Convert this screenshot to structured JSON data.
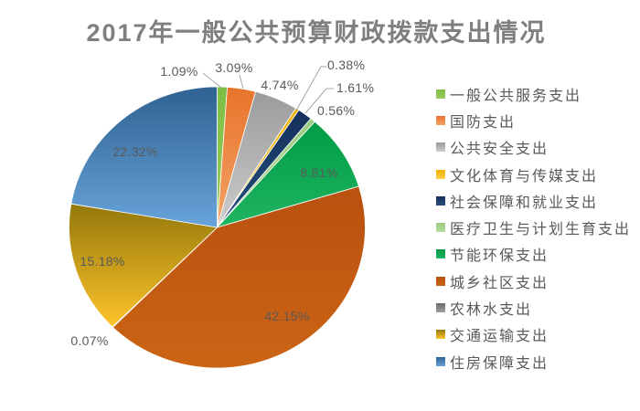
{
  "title": "2017年一般公共预算财政拨款支出情况",
  "colors": {
    "background": "#FFFFFF",
    "title_text": "#7F7F7F",
    "slice_label_text": "#595959",
    "legend_text": "#595959",
    "leader_line": "#A6A6A6",
    "slice_border": "#FFFFFF"
  },
  "chart_data": {
    "type": "pie",
    "title": "2017年一般公共预算财政拨款支出情况",
    "unit": "%",
    "total": 100.0,
    "start_angle_deg": 0,
    "direction": "clockwise",
    "legend_position": "right",
    "gradient_fill": true,
    "series": [
      {
        "name": "一般公共服务支出",
        "value": 1.09,
        "label": "1.09%",
        "color_top": "#7DBD45",
        "color_bottom": "#9BCC60"
      },
      {
        "name": "国防支出",
        "value": 3.09,
        "label": "3.09%",
        "color_top": "#E8732A",
        "color_bottom": "#F3A368"
      },
      {
        "name": "公共安全支出",
        "value": 4.74,
        "label": "4.74%",
        "color_top": "#9B9B9B",
        "color_bottom": "#CCCCCC"
      },
      {
        "name": "文化体育与传媒支出",
        "value": 0.38,
        "label": "0.38%",
        "color_top": "#EFB200",
        "color_bottom": "#FFD04D"
      },
      {
        "name": "社会保障和就业支出",
        "value": 1.61,
        "label": "1.61%",
        "color_top": "#14305A",
        "color_bottom": "#27507F"
      },
      {
        "name": "医疗卫生与计划生育支出",
        "value": 0.56,
        "label": "0.56%",
        "color_top": "#9CCB7E",
        "color_bottom": "#B7DCA2"
      },
      {
        "name": "节能环保支出",
        "value": 8.81,
        "label": "8.81%",
        "color_top": "#009C46",
        "color_bottom": "#1FB461"
      },
      {
        "name": "城乡社区支出",
        "value": 42.15,
        "label": "42.15%",
        "color_top": "#B95110",
        "color_bottom": "#CB6414"
      },
      {
        "name": "农林水支出",
        "value": 0.07,
        "label": "0.07%",
        "color_top": "#6B6B6B",
        "color_bottom": "#9E9E9E"
      },
      {
        "name": "交通运输支出",
        "value": 15.18,
        "label": "15.18%",
        "color_top": "#93780B",
        "color_bottom": "#FFC32A"
      },
      {
        "name": "住房保障支出",
        "value": 22.32,
        "label": "22.32%",
        "color_top": "#2F6191",
        "color_bottom": "#68A4DA"
      }
    ]
  }
}
